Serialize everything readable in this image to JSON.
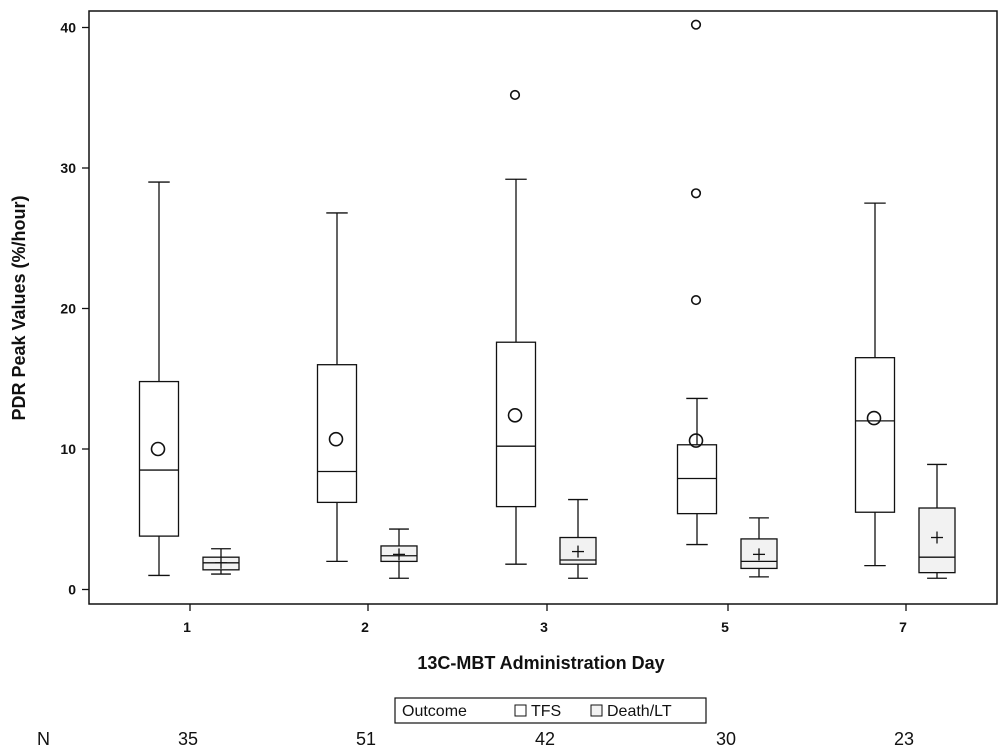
{
  "chart_data": {
    "type": "boxplot",
    "title": "",
    "xlabel": "13C-MBT Administration Day",
    "ylabel": "PDR Peak Values (%/hour)",
    "ylim": [
      -1,
      41
    ],
    "yticks": [
      0,
      10,
      20,
      30,
      40
    ],
    "categories": [
      "1",
      "2",
      "3",
      "5",
      "7"
    ],
    "legend": {
      "title": "Outcome",
      "placement": "bottom-center",
      "entries": [
        "TFS",
        "Death/LT"
      ]
    },
    "n_label": "N",
    "n_values": [
      "35",
      "51",
      "42",
      "30",
      "23"
    ],
    "series": [
      {
        "name": "TFS",
        "fill": "#ffffff",
        "mean_marker": "circle",
        "boxes": [
          {
            "min": 1.0,
            "q1": 3.8,
            "median": 8.5,
            "q3": 14.8,
            "max": 29.0,
            "mean": 10.0,
            "outliers": []
          },
          {
            "min": 2.0,
            "q1": 6.2,
            "median": 8.4,
            "q3": 16.0,
            "max": 26.8,
            "mean": 10.7,
            "outliers": []
          },
          {
            "min": 1.8,
            "q1": 5.9,
            "median": 10.2,
            "q3": 17.6,
            "max": 29.2,
            "mean": 12.4,
            "outliers": [
              35.2
            ]
          },
          {
            "min": 3.2,
            "q1": 5.4,
            "median": 7.9,
            "q3": 10.3,
            "max": 13.6,
            "mean": 10.6,
            "outliers": [
              20.6,
              28.2,
              40.2
            ]
          },
          {
            "min": 1.7,
            "q1": 5.5,
            "median": 12.0,
            "q3": 16.5,
            "max": 27.5,
            "mean": 12.2,
            "outliers": []
          }
        ]
      },
      {
        "name": "Death/LT",
        "fill": "#f2f2f2",
        "mean_marker": "plus",
        "boxes": [
          {
            "min": 1.1,
            "q1": 1.4,
            "median": 1.9,
            "q3": 2.3,
            "max": 2.9,
            "mean": 1.9,
            "outliers": []
          },
          {
            "min": 0.8,
            "q1": 2.0,
            "median": 2.4,
            "q3": 3.1,
            "max": 4.3,
            "mean": 2.5,
            "outliers": []
          },
          {
            "min": 0.8,
            "q1": 1.8,
            "median": 2.1,
            "q3": 3.7,
            "max": 6.4,
            "mean": 2.7,
            "outliers": []
          },
          {
            "min": 0.9,
            "q1": 1.5,
            "median": 2.0,
            "q3": 3.6,
            "max": 5.1,
            "mean": 2.5,
            "outliers": []
          },
          {
            "min": 0.8,
            "q1": 1.2,
            "median": 2.3,
            "q3": 5.8,
            "max": 8.9,
            "mean": 3.7,
            "outliers": []
          }
        ]
      }
    ]
  }
}
